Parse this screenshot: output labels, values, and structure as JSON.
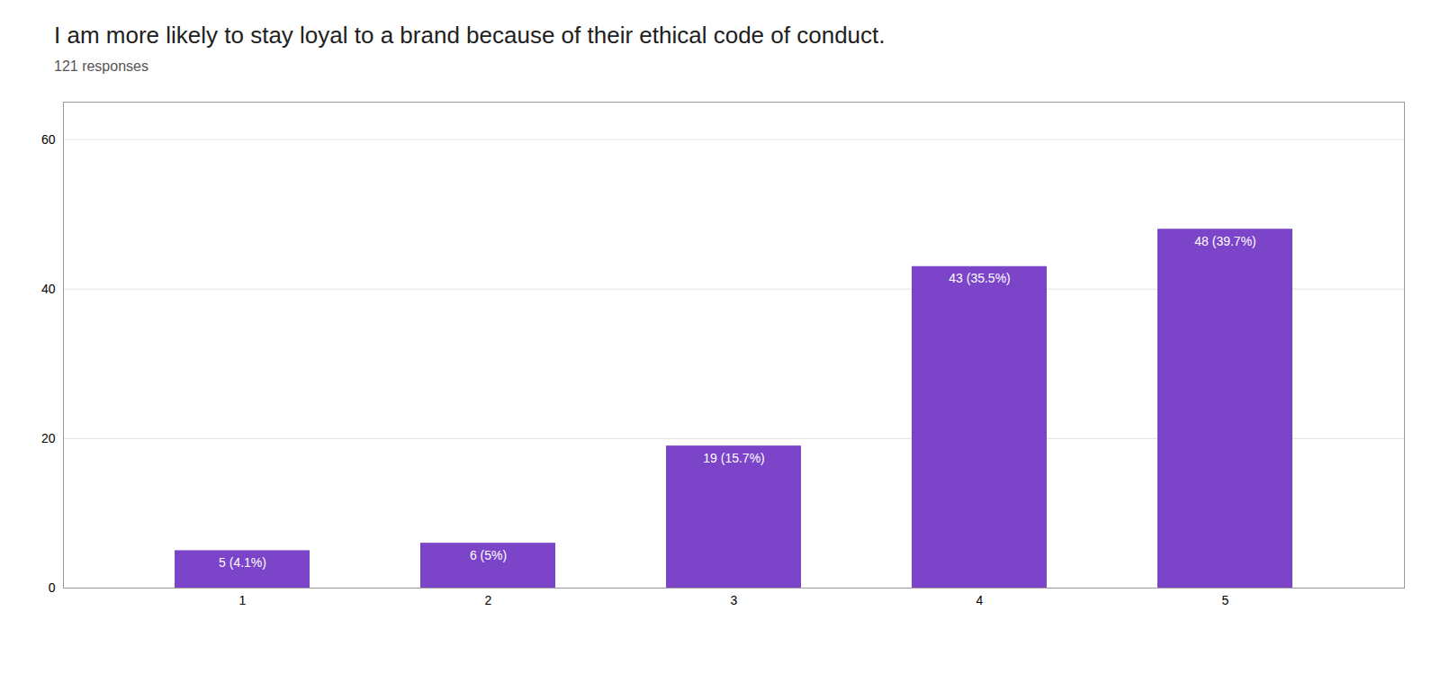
{
  "chart_data": {
    "type": "bar",
    "title": "I am more likely to stay loyal to a brand because of their ethical code of conduct.",
    "subtitle": "121 responses",
    "categories": [
      1,
      2,
      3,
      4,
      5
    ],
    "values": [
      5,
      6,
      19,
      43,
      48
    ],
    "value_labels": [
      "5 (4.1%)",
      "6 (5%)",
      "19 (15.7%)",
      "43 (35.5%)",
      "48 (39.7%)"
    ],
    "data_labels": true,
    "color": "#7B44C9",
    "ylim": [
      0,
      65
    ],
    "yticks": [
      0,
      20,
      40,
      60
    ],
    "grid": true
  }
}
